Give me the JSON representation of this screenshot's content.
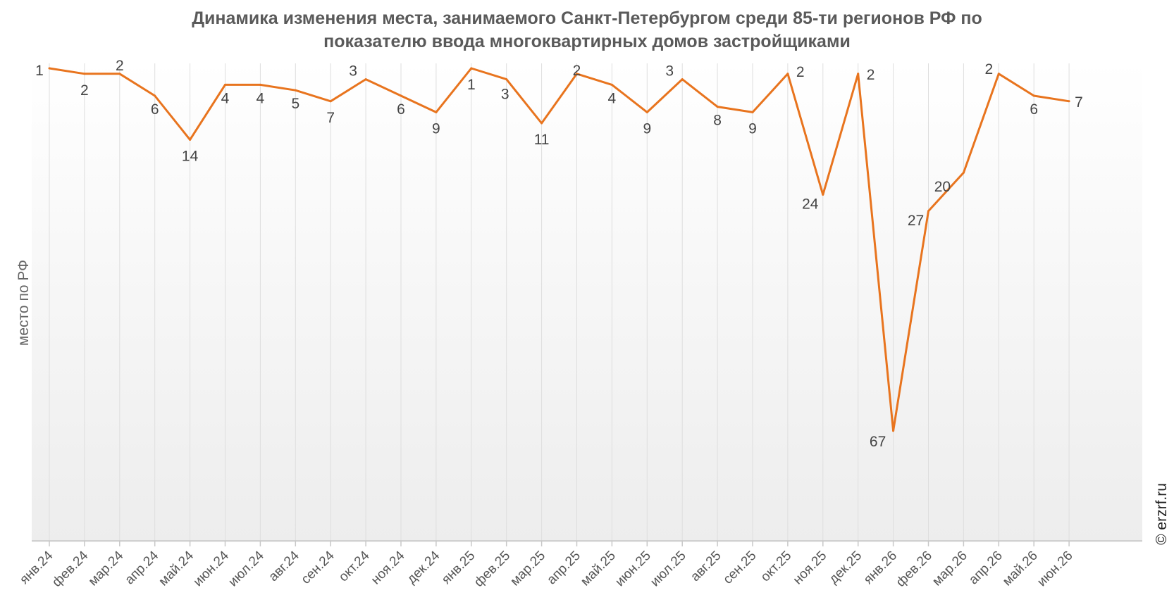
{
  "chart_data": {
    "type": "line",
    "title_line1": "Динамика изменения места, занимаемого Санкт-Петербургом среди 85-ти регионов РФ по",
    "title_line2": "показателю ввода многоквартирных домов застройщиками",
    "ylabel": "место по РФ",
    "xlabel": "",
    "y_inverted": true,
    "ylim": [
      85,
      0
    ],
    "grid": "vertical",
    "line_color": "#e8741e",
    "watermark": "© erzrf.ru",
    "categories": [
      "янв.24",
      "фев.24",
      "мар.24",
      "апр.24",
      "май.24",
      "июн.24",
      "июл.24",
      "авг.24",
      "сен.24",
      "окт.24",
      "ноя.24",
      "дек.24",
      "янв.25",
      "фев.25",
      "мар.25",
      "апр.25",
      "май.25",
      "июн.25",
      "июл.25",
      "авг.25",
      "сен.25",
      "окт.25",
      "ноя.25",
      "дек.25",
      "янв.26",
      "фев.26",
      "мар.26",
      "апр.26",
      "май.26",
      "июн.26"
    ],
    "values": [
      1,
      2,
      2,
      6,
      14,
      4,
      4,
      5,
      7,
      3,
      6,
      9,
      1,
      3,
      11,
      2,
      4,
      9,
      3,
      8,
      9,
      2,
      24,
      2,
      67,
      27,
      20,
      2,
      6,
      7
    ]
  }
}
